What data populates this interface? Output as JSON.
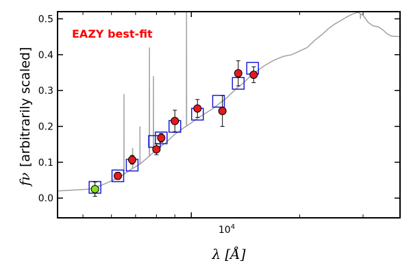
{
  "chart_data": {
    "type": "scatter",
    "title": "",
    "xscale": "log",
    "xlim": [
      4250,
      38000
    ],
    "ylim": [
      -0.055,
      0.52
    ],
    "xlabel_math": "λ [Å]",
    "ylabel_symbol": "fν",
    "ylabel_text": "[arbitrarily scaled]",
    "x_tick_label": "10^4",
    "x_tick_label_base": "10",
    "x_tick_label_exp": "4",
    "y_ticks": [
      0.0,
      0.1,
      0.2,
      0.3,
      0.4,
      0.5
    ],
    "y_tick_labels": [
      "0.0",
      "0.1",
      "0.2",
      "0.3",
      "0.4",
      "0.5"
    ],
    "annotation": "EAZY best-fit",
    "annotation_color": "#ff0000",
    "colors": {
      "template": "#a0a0a0",
      "observed": "#e41a1c",
      "highlight": "#7fe01c",
      "model_box": "#1a1ad6",
      "errorbar": "#000000"
    },
    "observed": [
      {
        "x": 5400,
        "y": 0.025,
        "err": 0.02,
        "highlight": true
      },
      {
        "x": 6250,
        "y": 0.062,
        "err": 0.01
      },
      {
        "x": 6850,
        "y": 0.107,
        "err": 0.012
      },
      {
        "x": 8000,
        "y": 0.136,
        "err": 0.015
      },
      {
        "x": 8250,
        "y": 0.168,
        "err": 0.012
      },
      {
        "x": 9000,
        "y": 0.215,
        "err": 0.03
      },
      {
        "x": 10400,
        "y": 0.25,
        "err": 0.025
      },
      {
        "x": 12200,
        "y": 0.243,
        "err": 0.043
      },
      {
        "x": 13500,
        "y": 0.348,
        "err": 0.035
      },
      {
        "x": 14900,
        "y": 0.344,
        "err": 0.022
      }
    ],
    "model_points": [
      {
        "x": 5400,
        "y": 0.03
      },
      {
        "x": 6250,
        "y": 0.062
      },
      {
        "x": 6850,
        "y": 0.092
      },
      {
        "x": 7900,
        "y": 0.158
      },
      {
        "x": 8250,
        "y": 0.168
      },
      {
        "x": 9000,
        "y": 0.2
      },
      {
        "x": 10400,
        "y": 0.234
      },
      {
        "x": 11900,
        "y": 0.27
      },
      {
        "x": 13500,
        "y": 0.32
      },
      {
        "x": 14800,
        "y": 0.362
      }
    ],
    "template_continuum": [
      [
        4250,
        0.02
      ],
      [
        4800,
        0.023
      ],
      [
        5200,
        0.025
      ],
      [
        5600,
        0.035
      ],
      [
        6000,
        0.048
      ],
      [
        6400,
        0.062
      ],
      [
        6800,
        0.08
      ],
      [
        7200,
        0.095
      ],
      [
        7600,
        0.115
      ],
      [
        8000,
        0.135
      ],
      [
        8500,
        0.155
      ],
      [
        9000,
        0.178
      ],
      [
        9500,
        0.195
      ],
      [
        10000,
        0.21
      ],
      [
        10500,
        0.225
      ],
      [
        11000,
        0.238
      ],
      [
        11500,
        0.25
      ],
      [
        12000,
        0.265
      ],
      [
        12500,
        0.278
      ],
      [
        13000,
        0.295
      ],
      [
        13500,
        0.31
      ],
      [
        14000,
        0.322
      ],
      [
        14500,
        0.338
      ],
      [
        15000,
        0.35
      ],
      [
        16000,
        0.37
      ],
      [
        17000,
        0.385
      ],
      [
        18000,
        0.395
      ],
      [
        19000,
        0.4
      ],
      [
        20000,
        0.41
      ],
      [
        21000,
        0.42
      ],
      [
        22000,
        0.44
      ],
      [
        23000,
        0.455
      ],
      [
        24000,
        0.472
      ],
      [
        25000,
        0.485
      ],
      [
        26000,
        0.495
      ],
      [
        27000,
        0.505
      ],
      [
        28000,
        0.513
      ],
      [
        29000,
        0.518
      ],
      [
        30000,
        0.51
      ],
      [
        31000,
        0.49
      ],
      [
        32000,
        0.48
      ],
      [
        33000,
        0.478
      ],
      [
        34000,
        0.47
      ],
      [
        35000,
        0.458
      ],
      [
        36000,
        0.452
      ],
      [
        38000,
        0.45
      ]
    ],
    "template_lines": [
      {
        "x": 6500,
        "peak": 0.29
      },
      {
        "x": 6870,
        "peak": 0.14
      },
      {
        "x": 7200,
        "peak": 0.2
      },
      {
        "x": 7650,
        "peak": 0.42
      },
      {
        "x": 7850,
        "peak": 0.34
      },
      {
        "x": 9700,
        "peak": 0.52
      },
      {
        "x": 29500,
        "peak": 0.5
      }
    ]
  }
}
